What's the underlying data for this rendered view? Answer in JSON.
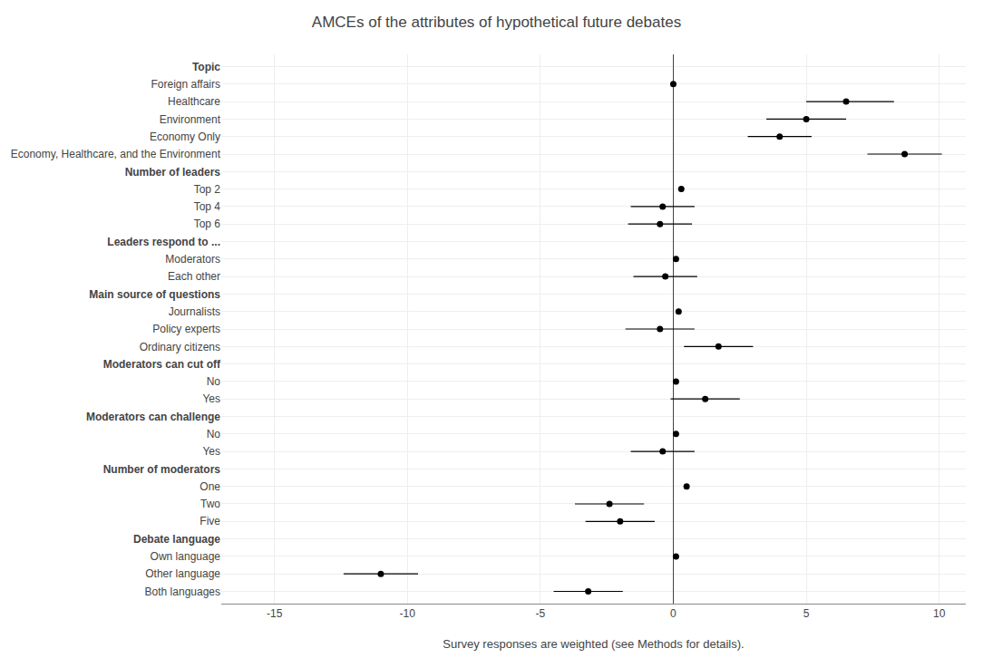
{
  "chart_data": {
    "type": "scatter",
    "title": "AMCEs of the attributes of hypothetical future debates",
    "xlabel": "Survey responses are weighted (see Methods for details).",
    "categories": [
      "Topic",
      "Foreign affairs",
      "Healthcare",
      "Environment",
      "Economy Only",
      "Economy, Healthcare, and the Environment",
      "Number of leaders",
      "Top 2",
      "Top 4",
      "Top 6",
      "Leaders respond to ...",
      "Moderators",
      "Each other",
      "Main source of questions",
      "Journalists",
      "Policy experts",
      "Ordinary citizens",
      "Moderators can cut off",
      "No",
      "Yes",
      "Moderators can challenge",
      "No",
      "Yes",
      "Number of moderators",
      "One",
      "Two",
      "Five",
      "Debate language",
      "Own language",
      "Other language",
      "Both languages"
    ],
    "values": [
      null,
      0.0,
      6.5,
      5.0,
      4.0,
      8.7,
      null,
      0.3,
      -0.4,
      -0.5,
      null,
      0.1,
      -0.3,
      null,
      0.2,
      -0.5,
      1.7,
      null,
      0.1,
      1.2,
      null,
      0.1,
      -0.4,
      null,
      0.5,
      -2.4,
      -2.0,
      null,
      0.1,
      -11.0,
      -3.2
    ],
    "ci_low": [
      null,
      null,
      5.0,
      3.5,
      2.8,
      7.3,
      null,
      null,
      -1.6,
      -1.7,
      null,
      null,
      -1.5,
      null,
      null,
      -1.8,
      0.4,
      null,
      null,
      -0.1,
      null,
      null,
      -1.6,
      null,
      null,
      -3.7,
      -3.3,
      null,
      null,
      -12.4,
      -4.5
    ],
    "ci_high": [
      null,
      null,
      8.3,
      6.5,
      5.2,
      10.1,
      null,
      null,
      0.8,
      0.7,
      null,
      null,
      0.9,
      null,
      null,
      0.8,
      3.0,
      null,
      null,
      2.5,
      null,
      null,
      0.8,
      null,
      null,
      -1.1,
      -0.7,
      null,
      null,
      -9.6,
      -1.9
    ],
    "xlim": [
      -17,
      11
    ],
    "xticks": [
      -15,
      -10,
      -5,
      0,
      5,
      10
    ],
    "color": "black",
    "grid": true
  }
}
